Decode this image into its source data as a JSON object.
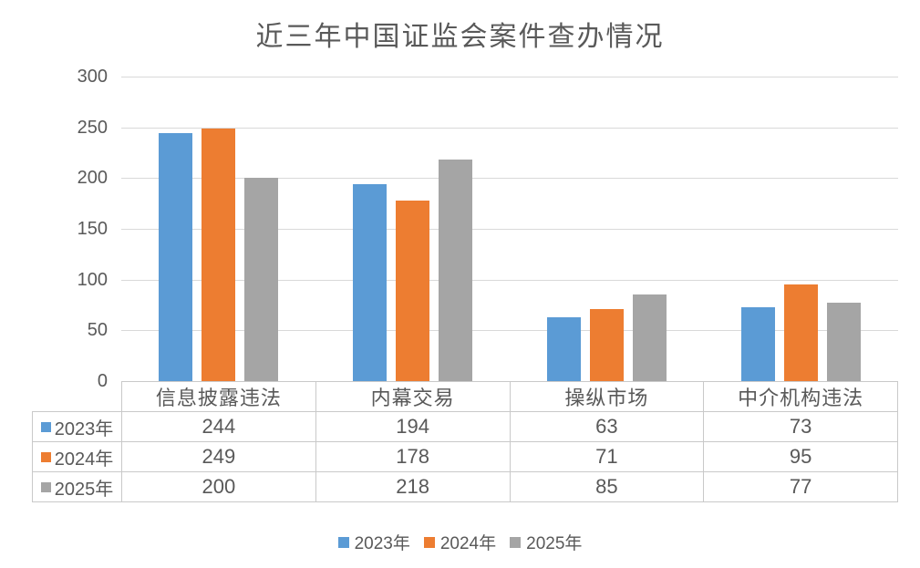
{
  "title": "近三年中国证监会案件查办情况",
  "colors": {
    "series_2023": "#5B9BD5",
    "series_2024": "#ED7D31",
    "series_2025": "#A5A5A5",
    "text": "#595959",
    "gridline": "#D9D9D9",
    "table_border": "#C9C9C9",
    "background": "#FFFFFF"
  },
  "chart_data": {
    "type": "bar",
    "title": "近三年中国证监会案件查办情况",
    "categories": [
      "信息披露违法",
      "内幕交易",
      "操纵市场",
      "中介机构违法"
    ],
    "series": [
      {
        "name": "2023年",
        "color": "#5B9BD5",
        "values": [
          244,
          194,
          63,
          73
        ]
      },
      {
        "name": "2024年",
        "color": "#ED7D31",
        "values": [
          249,
          178,
          71,
          95
        ]
      },
      {
        "name": "2025年",
        "color": "#A5A5A5",
        "values": [
          200,
          218,
          85,
          77
        ]
      }
    ],
    "xlabel": "",
    "ylabel": "",
    "ylim": [
      0,
      300
    ],
    "ytick_step": 50,
    "ytick_labels": [
      "0",
      "50",
      "100",
      "150",
      "200",
      "250",
      "300"
    ],
    "grid": true,
    "legend_position": "bottom",
    "legend_entries": [
      "2023年",
      "2024年",
      "2025年"
    ],
    "data_table_shown": true
  }
}
